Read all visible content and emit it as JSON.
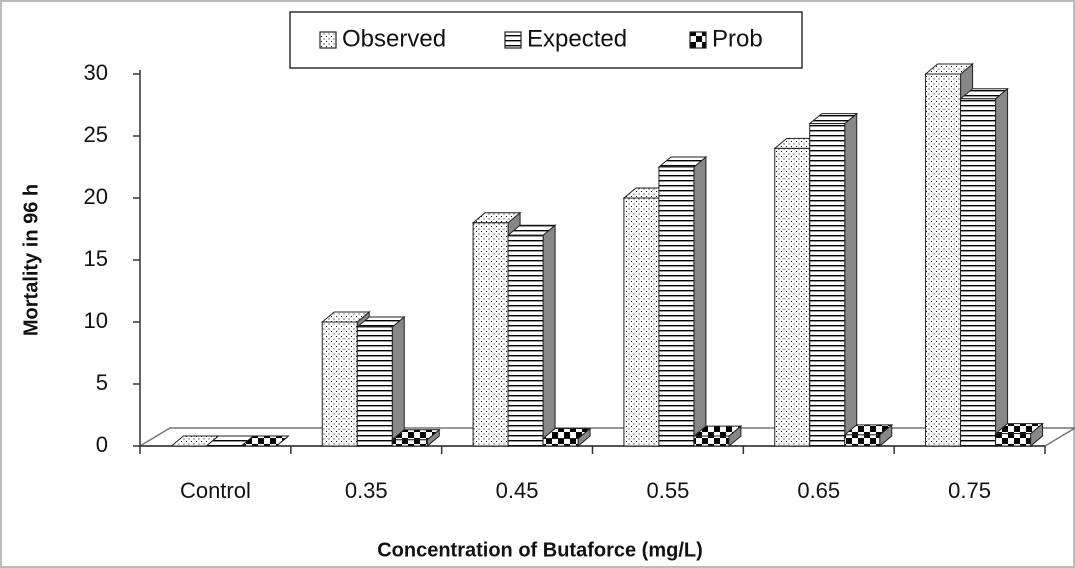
{
  "chart_data": {
    "type": "bar3d",
    "x_label": "Concentration of Butaforce (mg/L)",
    "y_label": "Mortality in 96 h",
    "categories": [
      "Control",
      "0.35",
      "0.45",
      "0.55",
      "0.65",
      "0.75"
    ],
    "series": [
      {
        "name": "Observed",
        "color": "#000000",
        "pattern": "dots",
        "values": [
          0,
          10,
          18,
          20,
          24,
          30
        ]
      },
      {
        "name": "Expected",
        "color": "#000000",
        "pattern": "hlines",
        "values": [
          0,
          9.6,
          17,
          22.5,
          26,
          28
        ]
      },
      {
        "name": "Prob",
        "color": "#000000",
        "pattern": "checker",
        "values": [
          0,
          0.5,
          0.6,
          0.8,
          0.9,
          1
        ]
      }
    ],
    "ylim": [
      0,
      30
    ],
    "yticks": [
      0,
      5,
      10,
      15,
      20,
      25,
      30
    ],
    "legend": "top"
  }
}
